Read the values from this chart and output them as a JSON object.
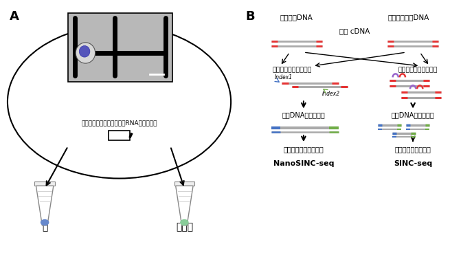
{
  "panel_A_label": "A",
  "panel_B_label": "B",
  "text_elec": "電気を利用して核と細胞質RNA分子を分画",
  "text_nucleus": "核",
  "text_cytoplasm": "細胞質",
  "text_full_cDNA": "全長 cDNA",
  "text_nuclear_cDNA": "核相補的DNA",
  "text_cytoplasm_cDNA": "細胞質相補的DNA",
  "text_adapter_direct": "そのままアダプタ付与",
  "text_adapter_frag": "断片化＆アダプタ付与",
  "text_long_lib": "長鎖DNAライブラリ",
  "text_short_lib": "短鎖DNAライブラリ",
  "text_nanopore": "ナノポアシーケンサー",
  "text_ngs": "次世代シーケンサー",
  "text_nanosinc": "NanoSINC-seq",
  "text_sinc": "SINC-seq",
  "text_index1": "Index1",
  "text_index2": "Index2",
  "bg_color": "#ffffff",
  "red_color": "#e63333",
  "blue_color": "#4472c4",
  "green_color": "#70ad47",
  "purple_color": "#9966cc",
  "gray_color": "#aaaaaa",
  "line_color": "#000000"
}
